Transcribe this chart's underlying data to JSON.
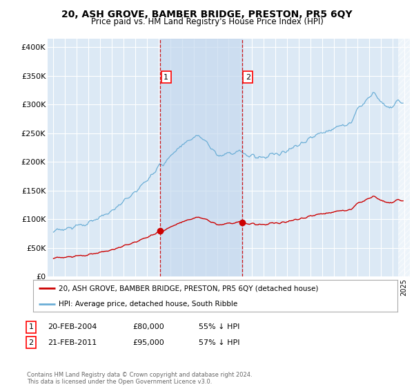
{
  "title": "20, ASH GROVE, BAMBER BRIDGE, PRESTON, PR5 6QY",
  "subtitle": "Price paid vs. HM Land Registry's House Price Index (HPI)",
  "title_fontsize": 10,
  "subtitle_fontsize": 8.5,
  "ylabel_ticks": [
    "£0",
    "£50K",
    "£100K",
    "£150K",
    "£200K",
    "£250K",
    "£300K",
    "£350K",
    "£400K"
  ],
  "ytick_vals": [
    0,
    50000,
    100000,
    150000,
    200000,
    250000,
    300000,
    350000,
    400000
  ],
  "ylim": [
    0,
    415000
  ],
  "xlim_start": 1994.5,
  "xlim_end": 2025.5,
  "hpi_color": "#6baed6",
  "sold_color": "#cc0000",
  "marker1_x": 2004.13,
  "marker1_y": 80000,
  "marker2_x": 2011.13,
  "marker2_y": 95000,
  "vline1_x": 2004.13,
  "vline2_x": 2011.13,
  "legend_sold_label": "20, ASH GROVE, BAMBER BRIDGE, PRESTON, PR5 6QY (detached house)",
  "legend_hpi_label": "HPI: Average price, detached house, South Ribble",
  "table_rows": [
    [
      "1",
      "20-FEB-2004",
      "£80,000",
      "55% ↓ HPI"
    ],
    [
      "2",
      "21-FEB-2011",
      "£95,000",
      "57% ↓ HPI"
    ]
  ],
  "footnote": "Contains HM Land Registry data © Crown copyright and database right 2024.\nThis data is licensed under the Open Government Licence v3.0.",
  "bg_color": "#ffffff",
  "plot_bg_color": "#dce9f5",
  "shade_color": "#c6d9ef",
  "grid_color": "#ffffff"
}
